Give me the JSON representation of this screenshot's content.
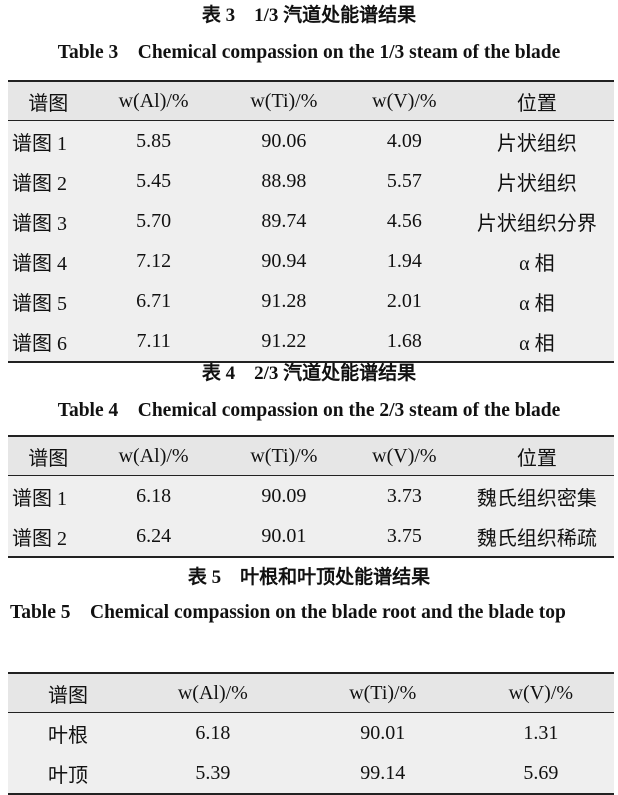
{
  "table3": {
    "caption_cn": "表 3　1/3 汽道处能谱结果",
    "caption_en": "Table 3　Chemical compassion on the 1/3 steam of the blade",
    "headers": [
      "谱图",
      "w(Al)/%",
      "w(Ti)/%",
      "w(V)/%",
      "位置"
    ],
    "rows": [
      [
        "谱图 1",
        "5.85",
        "90.06",
        "4.09",
        "片状组织"
      ],
      [
        "谱图 2",
        "5.45",
        "88.98",
        "5.57",
        "片状组织"
      ],
      [
        "谱图 3",
        "5.70",
        "89.74",
        "4.56",
        "片状组织分界"
      ],
      [
        "谱图 4",
        "7.12",
        "90.94",
        "1.94",
        "α 相"
      ],
      [
        "谱图 5",
        "6.71",
        "91.28",
        "2.01",
        "α 相"
      ],
      [
        "谱图 6",
        "7.11",
        "91.22",
        "1.68",
        "α 相"
      ]
    ]
  },
  "table4": {
    "caption_cn": "表 4　2/3 汽道处能谱结果",
    "caption_en": "Table 4　Chemical compassion on the 2/3 steam of the blade",
    "headers": [
      "谱图",
      "w(Al)/%",
      "w(Ti)/%",
      "w(V)/%",
      "位置"
    ],
    "rows": [
      [
        "谱图 1",
        "6.18",
        "90.09",
        "3.73",
        "魏氏组织密集"
      ],
      [
        "谱图 2",
        "6.24",
        "90.01",
        "3.75",
        "魏氏组织稀疏"
      ]
    ]
  },
  "table5": {
    "caption_cn": "表 5　叶根和叶顶处能谱结果",
    "caption_en": "Table 5　Chemical compassion on the blade root and the blade top",
    "headers": [
      "谱图",
      "w(Al)/%",
      "w(Ti)/%",
      "w(V)/%"
    ],
    "rows": [
      [
        "叶根",
        "6.18",
        "90.01",
        "1.31"
      ],
      [
        "叶顶",
        "5.39",
        "99.14",
        "5.69"
      ]
    ]
  }
}
